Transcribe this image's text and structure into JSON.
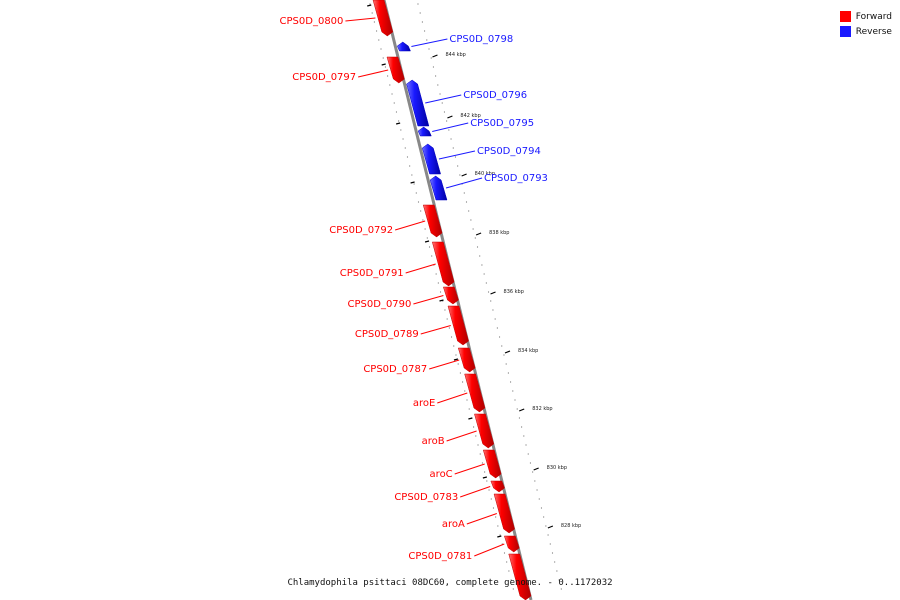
{
  "legend": {
    "forward_label": "Forward",
    "reverse_label": "Reverse",
    "forward_color": "#ff0000",
    "reverse_color": "#1a1aff"
  },
  "caption": "Chlamydophila psittaci 08DC60, complete genome. - 0..1172032",
  "genes": [
    {
      "label": "CPS0D_0800",
      "strand": "forward"
    },
    {
      "label": "CPS0D_0798",
      "strand": "reverse"
    },
    {
      "label": "CPS0D_0797",
      "strand": "forward"
    },
    {
      "label": "CPS0D_0796",
      "strand": "reverse"
    },
    {
      "label": "CPS0D_0795",
      "strand": "reverse"
    },
    {
      "label": "CPS0D_0794",
      "strand": "reverse"
    },
    {
      "label": "CPS0D_0793",
      "strand": "reverse"
    },
    {
      "label": "CPS0D_0792",
      "strand": "forward"
    },
    {
      "label": "CPS0D_0791",
      "strand": "forward"
    },
    {
      "label": "CPS0D_0790",
      "strand": "forward"
    },
    {
      "label": "CPS0D_0789",
      "strand": "forward"
    },
    {
      "label": "CPS0D_0787",
      "strand": "forward"
    },
    {
      "label": "aroE",
      "strand": "forward"
    },
    {
      "label": "aroB",
      "strand": "forward"
    },
    {
      "label": "aroC",
      "strand": "forward"
    },
    {
      "label": "CPS0D_0783",
      "strand": "forward"
    },
    {
      "label": "aroA",
      "strand": "forward"
    },
    {
      "label": "CPS0D_0781",
      "strand": "forward"
    }
  ],
  "ticks": [
    "844 kbp",
    "842 kbp",
    "840 kbp",
    "838 kbp",
    "836 kbp",
    "834 kbp",
    "832 kbp",
    "830 kbp",
    "828 kbp"
  ]
}
